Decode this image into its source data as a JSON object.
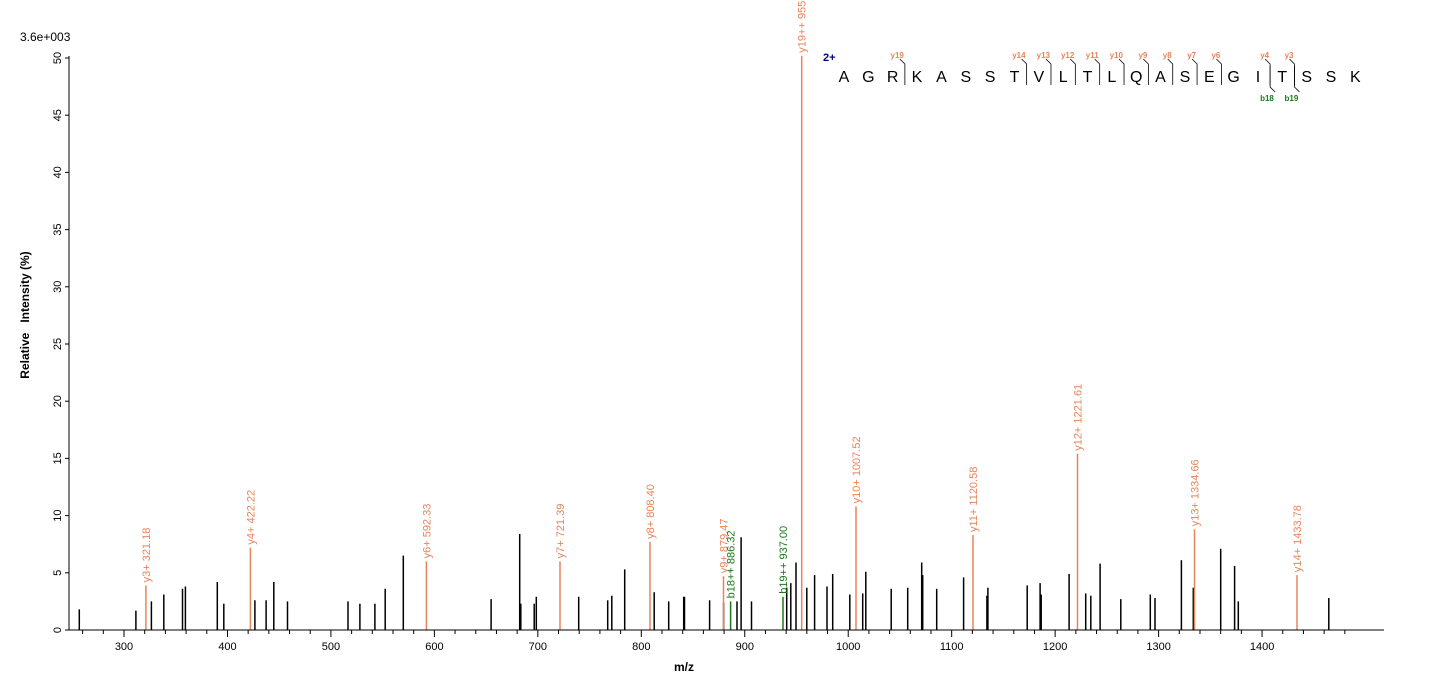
{
  "chart_data": {
    "type": "bar",
    "title": "",
    "scale_label": "3.6e+003",
    "xlabel": "m/z",
    "ylabel": "Relative   Intensity (%)",
    "xlim": [
      255,
      1500
    ],
    "ylim": [
      0,
      51
    ],
    "xticks_major": [
      300,
      400,
      500,
      600,
      700,
      800,
      900,
      1000,
      1100,
      1200,
      1300,
      1400
    ],
    "xticks_minor_step": 20,
    "yticks": [
      0,
      5,
      10,
      15,
      20,
      25,
      30,
      35,
      40,
      45,
      50
    ],
    "grid": false,
    "colors": {
      "unmatched": "#000000",
      "y_ion": "#e8845a",
      "b_ion": "#1a7a1a",
      "charge": "#00008b"
    },
    "series": [
      {
        "kind": "unmatched",
        "peaks": [
          [
            256.8,
            1.8
          ],
          [
            311.5,
            1.7
          ],
          [
            326.5,
            2.5
          ],
          [
            338.5,
            3.1
          ],
          [
            356.5,
            3.6
          ],
          [
            359.3,
            3.8
          ],
          [
            390.2,
            4.2
          ],
          [
            396.5,
            2.3
          ],
          [
            426.5,
            2.6
          ],
          [
            437.3,
            2.6
          ],
          [
            444.8,
            4.2
          ],
          [
            458.0,
            2.5
          ],
          [
            516.5,
            2.5
          ],
          [
            528.0,
            2.3
          ],
          [
            542.5,
            2.3
          ],
          [
            552.5,
            3.6
          ],
          [
            570.0,
            6.5
          ],
          [
            654.8,
            2.7
          ],
          [
            682.5,
            8.4
          ],
          [
            683.5,
            2.3
          ],
          [
            696.5,
            2.3
          ],
          [
            698.5,
            2.9
          ],
          [
            739.5,
            2.9
          ],
          [
            767.5,
            2.6
          ],
          [
            771.5,
            3.0
          ],
          [
            784.0,
            5.3
          ],
          [
            812.5,
            3.3
          ],
          [
            826.5,
            2.5
          ],
          [
            841.0,
            2.9
          ],
          [
            841.8,
            2.9
          ],
          [
            866.0,
            2.6
          ],
          [
            879.5,
            2.4
          ],
          [
            892.5,
            2.5
          ],
          [
            896.5,
            8.1
          ],
          [
            906.5,
            2.5
          ],
          [
            940.5,
            3.7
          ],
          [
            944.5,
            4.1
          ],
          [
            949.5,
            5.9
          ],
          [
            960.0,
            3.7
          ],
          [
            967.5,
            4.8
          ],
          [
            979.5,
            3.8
          ],
          [
            985.0,
            4.9
          ],
          [
            1001.5,
            3.1
          ],
          [
            1014.0,
            3.2
          ],
          [
            1017.0,
            5.1
          ],
          [
            1041.5,
            3.6
          ],
          [
            1057.5,
            3.7
          ],
          [
            1071.0,
            5.9
          ],
          [
            1072.0,
            4.8
          ],
          [
            1085.5,
            3.6
          ],
          [
            1111.5,
            4.6
          ],
          [
            1134.0,
            3.0
          ],
          [
            1135.0,
            3.7
          ],
          [
            1173.0,
            3.9
          ],
          [
            1185.5,
            4.1
          ],
          [
            1186.5,
            3.1
          ],
          [
            1213.5,
            4.9
          ],
          [
            1229.5,
            3.2
          ],
          [
            1234.5,
            3.0
          ],
          [
            1243.5,
            5.8
          ],
          [
            1263.5,
            2.7
          ],
          [
            1292.0,
            3.1
          ],
          [
            1296.5,
            2.8
          ],
          [
            1322.0,
            6.1
          ],
          [
            1333.5,
            3.7
          ],
          [
            1360.0,
            7.1
          ],
          [
            1373.5,
            5.6
          ],
          [
            1377.0,
            2.5
          ],
          [
            1464.5,
            2.8
          ]
        ]
      },
      {
        "kind": "y_ion",
        "peaks": [
          [
            321.18,
            3.9
          ],
          [
            422.22,
            7.2
          ],
          [
            592.33,
            6.0
          ],
          [
            721.39,
            6.0
          ],
          [
            808.4,
            7.7
          ],
          [
            879.47,
            4.7
          ],
          [
            955.02,
            50.2
          ],
          [
            1007.52,
            10.8
          ],
          [
            1120.58,
            8.3
          ],
          [
            1221.61,
            15.4
          ],
          [
            1334.66,
            8.8
          ],
          [
            1433.78,
            4.8
          ]
        ],
        "labels": [
          "y3+ 321.18",
          "y4+ 422.22",
          "y6+ 592.33",
          "y7+ 721.39",
          "y8+ 808.40",
          "y9+ 879.47",
          "y19++ 955.02",
          "y10+ 1007.52",
          "y11+ 1120.58",
          "y12+ 1221.61",
          "y13+ 1334.66",
          "y14+ 1433.78"
        ]
      },
      {
        "kind": "b_ion",
        "peaks": [
          [
            886.32,
            2.5
          ],
          [
            937.0,
            2.9
          ]
        ],
        "labels": [
          "b18++ 886.32",
          "b19++ 937.00"
        ]
      }
    ],
    "sequence": {
      "charge_label": "2+",
      "residues": [
        "A",
        "G",
        "R",
        "K",
        "A",
        "S",
        "S",
        "T",
        "V",
        "L",
        "T",
        "L",
        "Q",
        "A",
        "S",
        "E",
        "G",
        "I",
        "T",
        "S",
        "S",
        "K"
      ],
      "y_fragments": [
        {
          "after": 3,
          "label": "y19"
        },
        {
          "after": 8,
          "label": "y14"
        },
        {
          "after": 9,
          "label": "y13"
        },
        {
          "after": 10,
          "label": "y12"
        },
        {
          "after": 11,
          "label": "y11"
        },
        {
          "after": 12,
          "label": "y10"
        },
        {
          "after": 13,
          "label": "y9"
        },
        {
          "after": 14,
          "label": "y8"
        },
        {
          "after": 15,
          "label": "y7"
        },
        {
          "after": 16,
          "label": "y6"
        },
        {
          "after": 18,
          "label": "y4"
        },
        {
          "after": 19,
          "label": "y3"
        }
      ],
      "b_fragments": [
        {
          "after": 18,
          "label": "b18"
        },
        {
          "after": 19,
          "label": "b19"
        }
      ]
    }
  }
}
